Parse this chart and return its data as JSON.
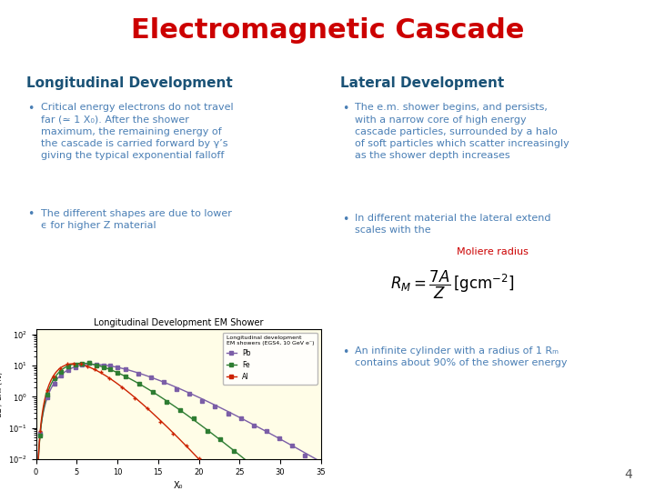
{
  "title": "Electromagnetic Cascade",
  "title_color": "#cc0000",
  "title_fontsize": 22,
  "left_heading": "Longitudinal Development",
  "right_heading": "Lateral Development",
  "heading_color": "#1a5276",
  "heading_fontsize": 11,
  "bullet_color": "#4a7fb5",
  "bullet_fontsize": 8.0,
  "left_bullet1": "Critical energy electrons do not travel\nfar (≃ 1 X₀). After the shower\nmaximum, the remaining energy of\nthe cascade is carried forward by γ’s\ngiving the typical exponential falloff",
  "left_bullet2": "The different shapes are due to lower\nϵ for higher Z material",
  "right_bullet1": "The e.m. shower begins, and persists,\nwith a narrow core of high energy\ncascade particles, surrounded by a halo\nof soft particles which scatter increasingly\nas the shower depth increases",
  "right_bullet2a": "In different material the lateral extend\nscales with the ",
  "right_bullet2b": "Moliere radius",
  "right_bullet2b_color": "#cc0000",
  "right_bullet3": "An infinite cylinder with a radius of 1 Rₘ\ncontains about 90% of the shower energy",
  "page_number": "4",
  "plot_title": "Longitudinal Development EM Shower",
  "plot_bg_color": "#fffde7",
  "plot_xlabel": "X₀",
  "plot_ylabel": "dE / dX₀ (%)",
  "plot_legend_header1": "Longitudinal development",
  "plot_legend_header2": "EM showers (EGS4, 10 GeV e⁻)",
  "plot_curves": [
    "Pb",
    "Fe",
    "Al"
  ],
  "plot_colors": [
    "#7b5ea7",
    "#2e7d32",
    "#cc2200"
  ],
  "background_color": "#ffffff"
}
